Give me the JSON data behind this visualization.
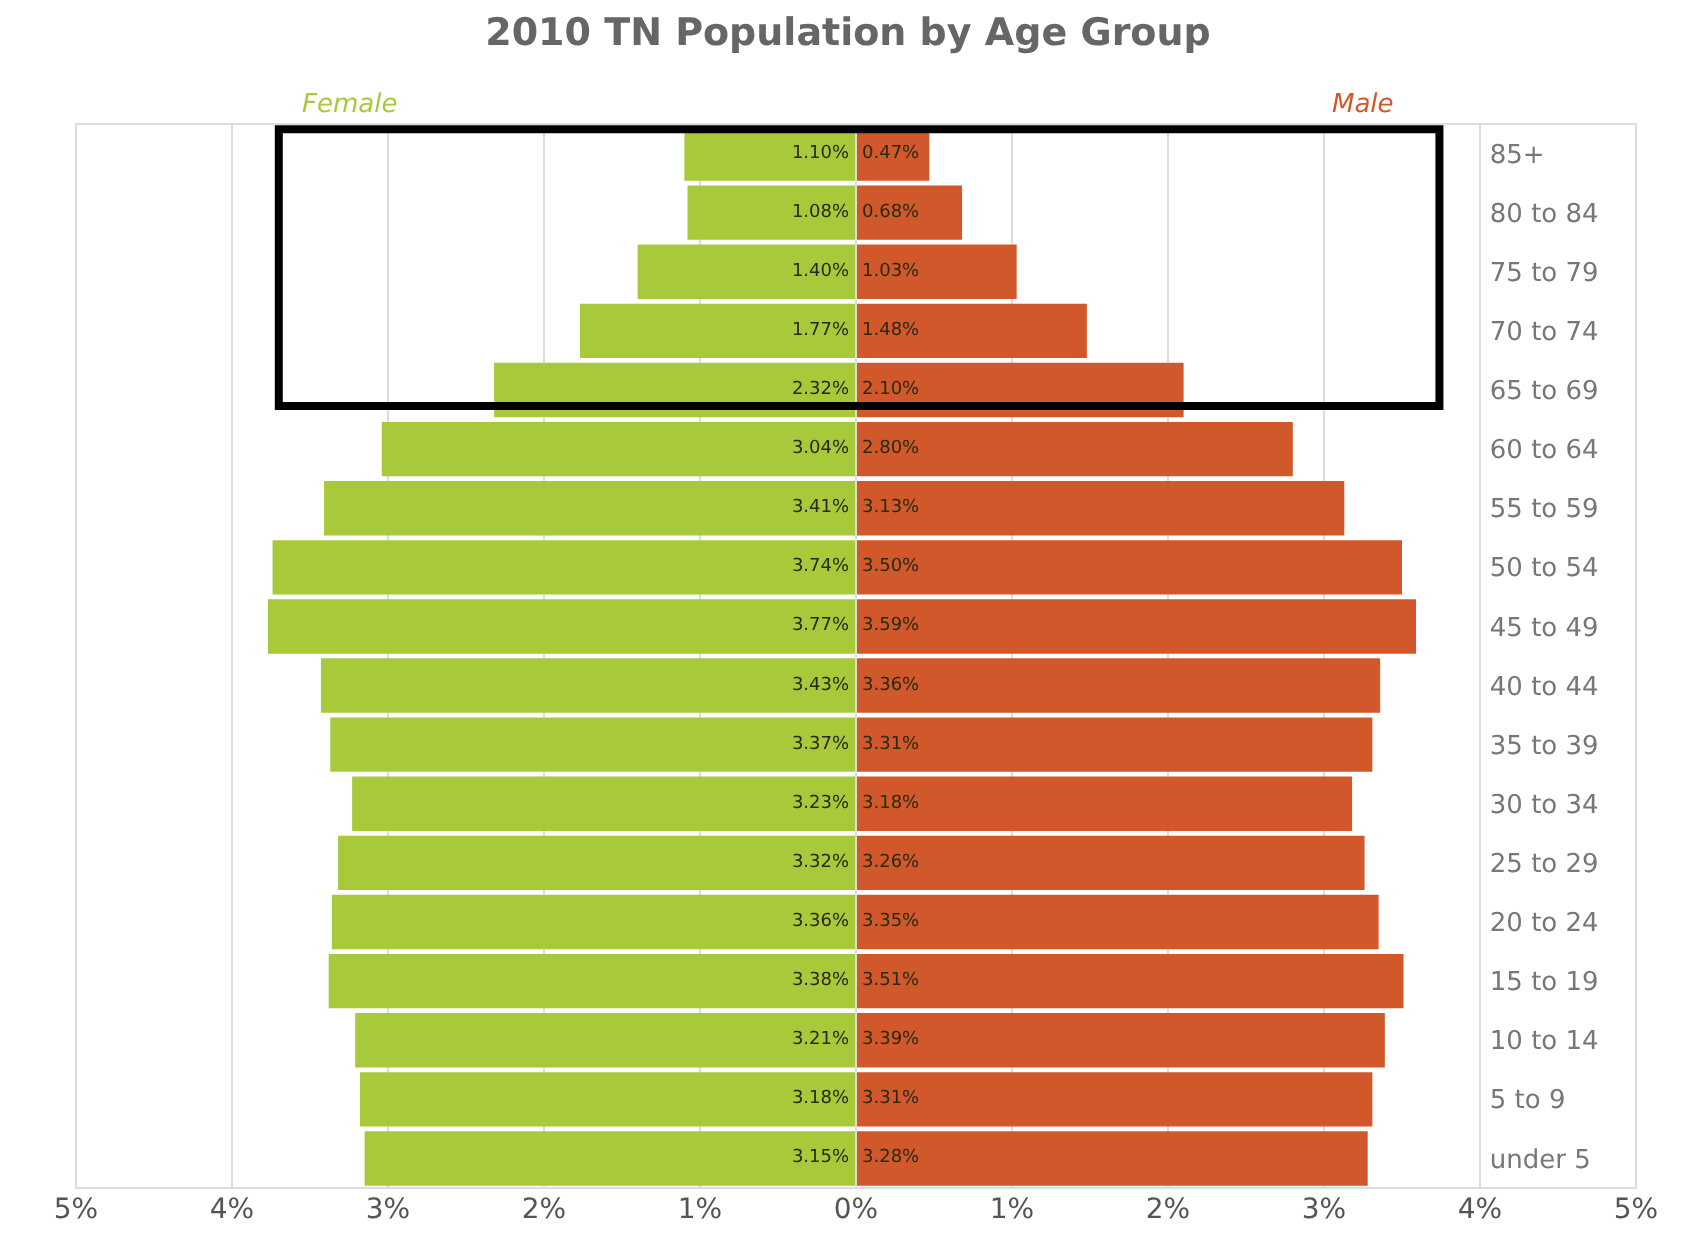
{
  "chart_data": [
    {
      "type": "bar",
      "orientation": "horizontal",
      "title": "2010 TN Population by Age Group",
      "categories": [
        "85+",
        "80 to 84",
        "75 to 79",
        "70 to 74",
        "65 to 69",
        "60 to 64",
        "55 to 59",
        "50 to 54",
        "45 to 49",
        "40 to 44",
        "35 to 39",
        "30 to 34",
        "25 to 29",
        "20 to 24",
        "15 to 19",
        "10 to 14",
        "5 to 9",
        "under 5"
      ],
      "series": [
        {
          "name": "Female",
          "color": "#a8c93a",
          "values": [
            1.1,
            1.08,
            1.4,
            1.77,
            2.32,
            3.04,
            3.41,
            3.74,
            3.77,
            3.43,
            3.37,
            3.23,
            3.32,
            3.36,
            3.38,
            3.21,
            3.18,
            3.15
          ],
          "value_labels": [
            "1.10%",
            "1.08%",
            "1.40%",
            "1.77%",
            "2.32%",
            "3.04%",
            "3.41%",
            "3.74%",
            "3.77%",
            "3.43%",
            "3.37%",
            "3.23%",
            "3.32%",
            "3.36%",
            "3.38%",
            "3.21%",
            "3.18%",
            "3.15%"
          ]
        }
      ],
      "xlim": [
        5,
        0
      ],
      "xticks": [
        {
          "value": 5,
          "label": "5%"
        },
        {
          "value": 4,
          "label": "4%"
        },
        {
          "value": 3,
          "label": "3%"
        },
        {
          "value": 2,
          "label": "2%"
        },
        {
          "value": 1,
          "label": "1%"
        },
        {
          "value": 0,
          "label": "0%"
        }
      ],
      "grid": "x",
      "legend": false,
      "tick_labels": "x"
    },
    {
      "type": "bar",
      "orientation": "horizontal",
      "categories": [
        "85+",
        "80 to 84",
        "75 to 79",
        "70 to 74",
        "65 to 69",
        "60 to 64",
        "55 to 59",
        "50 to 54",
        "45 to 49",
        "40 to 44",
        "35 to 39",
        "30 to 34",
        "25 to 29",
        "20 to 24",
        "15 to 19",
        "10 to 14",
        "5 to 9",
        "under 5"
      ],
      "series": [
        {
          "name": "Male",
          "color": "#d0582a",
          "values": [
            0.47,
            0.68,
            1.03,
            1.48,
            2.1,
            2.8,
            3.13,
            3.5,
            3.59,
            3.36,
            3.31,
            3.18,
            3.26,
            3.35,
            3.51,
            3.39,
            3.31,
            3.28
          ],
          "value_labels": [
            "0.47%",
            "0.68%",
            "1.03%",
            "1.48%",
            "2.10%",
            "2.80%",
            "3.13%",
            "3.50%",
            "3.59%",
            "3.36%",
            "3.31%",
            "3.18%",
            "3.26%",
            "3.35%",
            "3.51%",
            "3.39%",
            "3.31%",
            "3.28%"
          ]
        }
      ],
      "xlim": [
        0,
        5
      ],
      "xticks": [
        {
          "value": 1,
          "label": "1%"
        },
        {
          "value": 2,
          "label": "2%"
        },
        {
          "value": 3,
          "label": "3%"
        },
        {
          "value": 4,
          "label": "4%"
        },
        {
          "value": 5,
          "label": "5%"
        }
      ],
      "grid": "x",
      "legend": false
    }
  ]
}
